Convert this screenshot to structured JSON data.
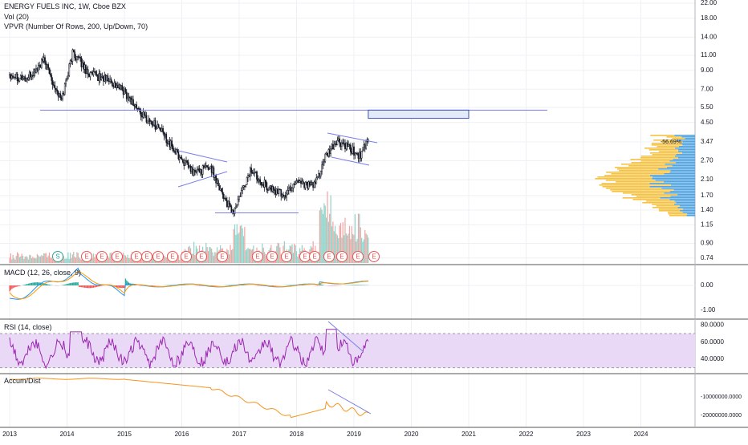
{
  "header": {
    "symbol_line": "ENERGY FUELS INC, 1W, Cboe BZX",
    "vol_line": "Vol (20)",
    "vpvr_line": "VPVR (Number Of Rows, 200, Up/Down, 70)"
  },
  "colors": {
    "up": "#26a69a",
    "down": "#ef5350",
    "trend": "#7b7ee8",
    "rsi_line": "#9c27b0",
    "rsi_band": "#e9d9f7",
    "ad_line": "#f7931a",
    "macd_line": "#2196f3",
    "signal_line": "#ff9800",
    "vpvr_up": "#4fa3e0",
    "vpvr_down": "#f5c242",
    "grid": "#eef0f3",
    "separator": "#555555"
  },
  "time_axis": [
    "2013",
    "2014",
    "2015",
    "2016",
    "2017",
    "2018",
    "2019",
    "2020",
    "2021",
    "2022",
    "2023",
    "2024"
  ],
  "price_pane": {
    "scale": "log",
    "ticks": [
      "22.00",
      "18.00",
      "14.00",
      "11.00",
      "9.00",
      "7.00",
      "5.50",
      "4.50",
      "3.47",
      "2.70",
      "2.10",
      "1.70",
      "1.40",
      "1.15",
      "0.90",
      "0.74"
    ],
    "last_price_label": "3.47",
    "percent_label": "-56.69%"
  },
  "event_markers": [
    "S",
    "E",
    "E",
    "E",
    "E",
    "E",
    "E",
    "E",
    "E",
    "E",
    "E",
    "E",
    "E",
    "E",
    "E",
    "E",
    "E",
    "E",
    "E",
    "E"
  ],
  "macd_pane": {
    "label": "MACD (12, 26, close, 9)",
    "ticks": [
      "0.00",
      "-1.00"
    ]
  },
  "rsi_pane": {
    "label": "RSI (14, close)",
    "ticks": [
      "80.0000",
      "60.0000",
      "40.0000"
    ]
  },
  "ad_pane": {
    "label": "Accum/Dist",
    "ticks": [
      "-10000000.0000",
      "-20000000.0000"
    ]
  },
  "chart_data": {
    "type": "line",
    "title": "ENERGY FUELS INC, 1W, Cboe BZX",
    "x": [
      2013.0,
      2013.3,
      2013.6,
      2013.9,
      2014.1,
      2014.4,
      2014.7,
      2015.0,
      2015.3,
      2015.6,
      2015.9,
      2016.2,
      2016.5,
      2016.8,
      2016.9,
      2017.2,
      2017.5,
      2017.8,
      2018.0,
      2018.3,
      2018.5,
      2018.7,
      2018.9,
      2019.1,
      2019.25
    ],
    "series": [
      {
        "name": "Price",
        "values": [
          8.6,
          8.0,
          10.2,
          6.0,
          11.5,
          8.5,
          8.0,
          6.8,
          5.0,
          4.2,
          3.0,
          2.3,
          2.5,
          1.5,
          1.35,
          2.4,
          1.9,
          1.7,
          2.1,
          1.9,
          2.8,
          3.5,
          3.2,
          2.9,
          3.47
        ]
      }
    ],
    "xlim": [
      2012.92,
      2025.0
    ],
    "ylim": [
      0.7,
      22.0
    ],
    "yscale": "log",
    "annotations": [
      {
        "type": "horizontal-line",
        "y": 5.3
      },
      {
        "type": "support-line",
        "y": 1.35
      },
      {
        "type": "box",
        "x": [
          2019.25,
          2021.0
        ],
        "y": [
          4.75,
          5.3
        ]
      }
    ],
    "grid": true,
    "legend": "top-left"
  }
}
